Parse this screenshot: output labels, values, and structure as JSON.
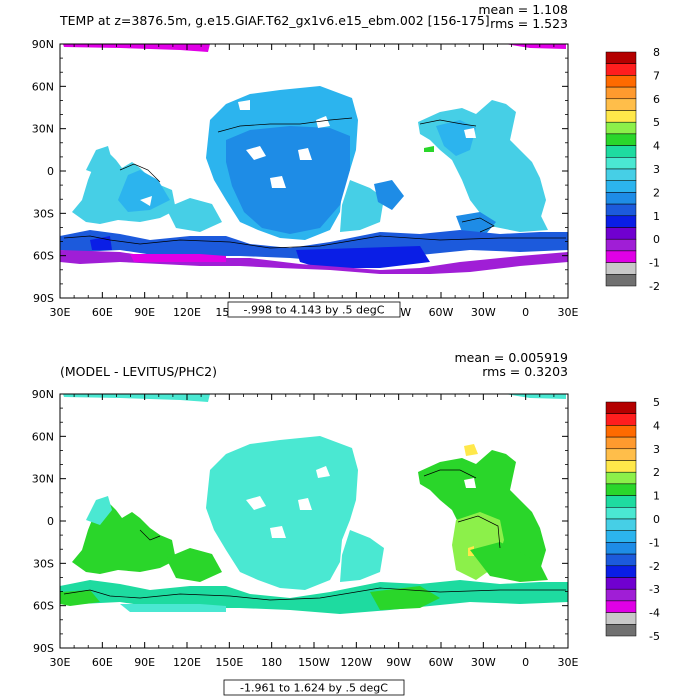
{
  "panels": [
    {
      "title": "TEMP at z=3876.5m, g.e15.GIAF.T62_gx1v6.e15_ebm.002 [156-175]",
      "mean_text": "mean = 1.108",
      "rms_text": "rms = 1.523",
      "range_text": "-.998 to 4.143 by .5 degC",
      "colorbar_labels": [
        "8",
        "7",
        "6",
        "5",
        "4",
        "3",
        "2",
        "1",
        "0",
        "-1",
        "-2"
      ],
      "colors": [
        "#b40000",
        "#ff1e1e",
        "#ff6a00",
        "#ff9a2e",
        "#ffbe4a",
        "#ffe84a",
        "#8cf04a",
        "#2ad62a",
        "#1edba0",
        "#4ae8d2",
        "#46cfe6",
        "#2cb4ee",
        "#1e8ce6",
        "#1c5adc",
        "#0a1ee6",
        "#7000d0",
        "#a01ed6",
        "#e000e6",
        "#c8c8c8",
        "#707070"
      ]
    },
    {
      "title": "(MODEL - LEVITUS/PHC2)",
      "mean_text": "mean = 0.005919",
      "rms_text": "rms = 0.3203",
      "range_text": "-1.961 to 1.624 by .5 degC",
      "colorbar_labels": [
        "5",
        "4",
        "3",
        "2",
        "1",
        "0",
        "-1",
        "-2",
        "-3",
        "-4",
        "-5"
      ],
      "colors": [
        "#b40000",
        "#ff1e1e",
        "#ff6a00",
        "#ff9a2e",
        "#ffbe4a",
        "#ffe84a",
        "#8cf04a",
        "#2ad62a",
        "#1edba0",
        "#4ae8d2",
        "#46cfe6",
        "#2cb4ee",
        "#1e8ce6",
        "#1c5adc",
        "#0a1ee6",
        "#7000d0",
        "#a01ed6",
        "#e000e6",
        "#c8c8c8",
        "#707070"
      ]
    }
  ],
  "lon_labels": [
    "30E",
    "60E",
    "90E",
    "120E",
    "150E",
    "180",
    "150W",
    "120W",
    "90W",
    "60W",
    "30W",
    "0",
    "30E"
  ],
  "lat_labels": [
    "90N",
    "60N",
    "30N",
    "0",
    "30S",
    "60S",
    "90S"
  ]
}
